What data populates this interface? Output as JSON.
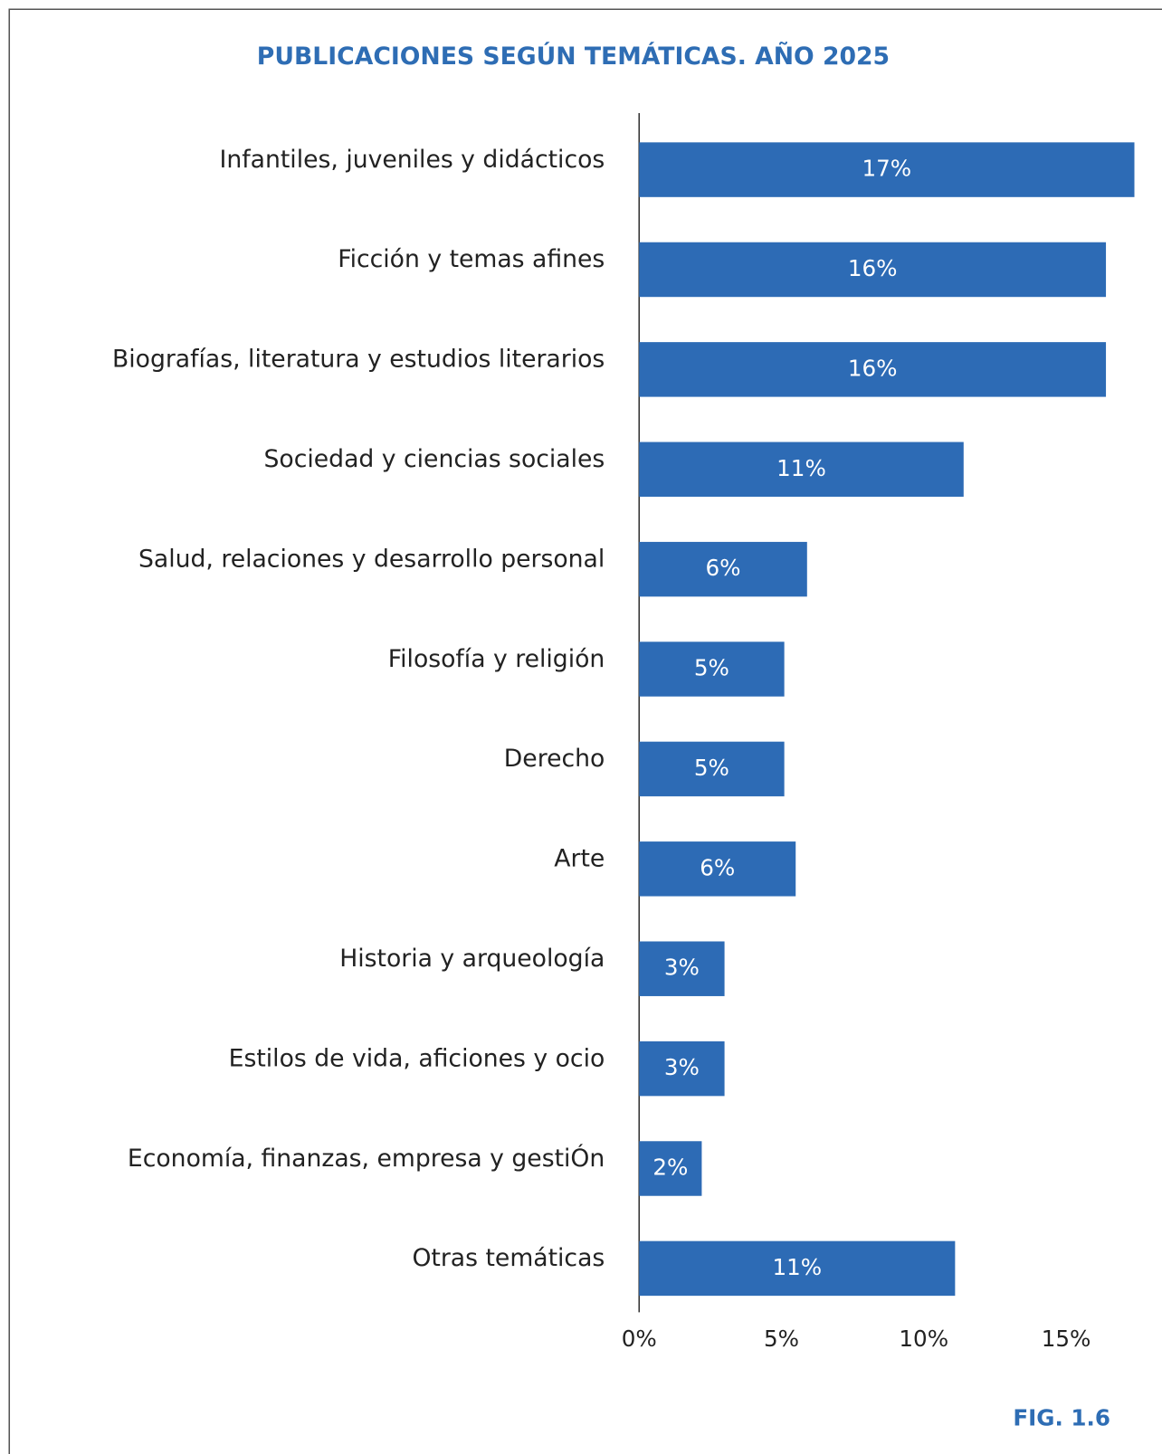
{
  "chart_data": {
    "type": "hbar",
    "title": "PUBLICACIONES SEGÚN TEMÁTICAS. AÑO 2025",
    "figure_label": "FIG. 1.6",
    "categories": [
      "Infantiles, juveniles y didácticos",
      "Ficción y temas afines",
      "Biografías, literatura y estudios literarios",
      "Sociedad y ciencias sociales",
      "Salud, relaciones y desarrollo personal",
      "Filosofía y religión",
      "Derecho",
      "Arte",
      "Historia y arqueología",
      "Estilos de vida, aficiones y ocio",
      "Economía, finanzas, empresa y gestiÓn",
      "Otras temáticas"
    ],
    "values": [
      17.4,
      16.4,
      16.4,
      11.4,
      5.9,
      5.1,
      5.1,
      5.5,
      3.0,
      3.0,
      2.2,
      11.1
    ],
    "value_labels": [
      "17%",
      "16%",
      "16%",
      "11%",
      "6%",
      "5%",
      "5%",
      "6%",
      "3%",
      "3%",
      "2%",
      "11%"
    ],
    "color": "#2d6bb5",
    "xlim": [
      0,
      17.5
    ],
    "xticks": [
      {
        "value": 0,
        "label": "0%"
      },
      {
        "value": 5,
        "label": "5%"
      },
      {
        "value": 10,
        "label": "10%"
      },
      {
        "value": 15,
        "label": "15%"
      }
    ]
  }
}
